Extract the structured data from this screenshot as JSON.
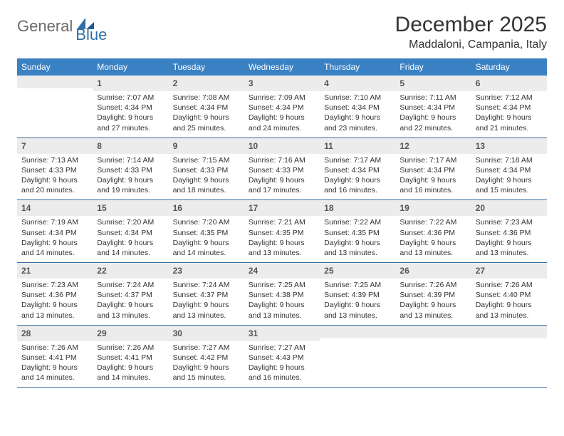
{
  "brand": {
    "general": "General",
    "blue": "Blue"
  },
  "title": "December 2025",
  "subtitle": "Maddaloni, Campania, Italy",
  "colors": {
    "header_bg": "#3a81c3",
    "header_text": "#ffffff",
    "daynum_bg": "#ececec",
    "week_border": "#3a6fa3",
    "body_text": "#333333",
    "logo_grey": "#6a6a6a",
    "logo_blue": "#2f6fa8"
  },
  "dow": [
    "Sunday",
    "Monday",
    "Tuesday",
    "Wednesday",
    "Thursday",
    "Friday",
    "Saturday"
  ],
  "weeks": [
    [
      null,
      {
        "n": "1",
        "sr": "Sunrise: 7:07 AM",
        "ss": "Sunset: 4:34 PM",
        "d1": "Daylight: 9 hours",
        "d2": "and 27 minutes."
      },
      {
        "n": "2",
        "sr": "Sunrise: 7:08 AM",
        "ss": "Sunset: 4:34 PM",
        "d1": "Daylight: 9 hours",
        "d2": "and 25 minutes."
      },
      {
        "n": "3",
        "sr": "Sunrise: 7:09 AM",
        "ss": "Sunset: 4:34 PM",
        "d1": "Daylight: 9 hours",
        "d2": "and 24 minutes."
      },
      {
        "n": "4",
        "sr": "Sunrise: 7:10 AM",
        "ss": "Sunset: 4:34 PM",
        "d1": "Daylight: 9 hours",
        "d2": "and 23 minutes."
      },
      {
        "n": "5",
        "sr": "Sunrise: 7:11 AM",
        "ss": "Sunset: 4:34 PM",
        "d1": "Daylight: 9 hours",
        "d2": "and 22 minutes."
      },
      {
        "n": "6",
        "sr": "Sunrise: 7:12 AM",
        "ss": "Sunset: 4:34 PM",
        "d1": "Daylight: 9 hours",
        "d2": "and 21 minutes."
      }
    ],
    [
      {
        "n": "7",
        "sr": "Sunrise: 7:13 AM",
        "ss": "Sunset: 4:33 PM",
        "d1": "Daylight: 9 hours",
        "d2": "and 20 minutes."
      },
      {
        "n": "8",
        "sr": "Sunrise: 7:14 AM",
        "ss": "Sunset: 4:33 PM",
        "d1": "Daylight: 9 hours",
        "d2": "and 19 minutes."
      },
      {
        "n": "9",
        "sr": "Sunrise: 7:15 AM",
        "ss": "Sunset: 4:33 PM",
        "d1": "Daylight: 9 hours",
        "d2": "and 18 minutes."
      },
      {
        "n": "10",
        "sr": "Sunrise: 7:16 AM",
        "ss": "Sunset: 4:33 PM",
        "d1": "Daylight: 9 hours",
        "d2": "and 17 minutes."
      },
      {
        "n": "11",
        "sr": "Sunrise: 7:17 AM",
        "ss": "Sunset: 4:34 PM",
        "d1": "Daylight: 9 hours",
        "d2": "and 16 minutes."
      },
      {
        "n": "12",
        "sr": "Sunrise: 7:17 AM",
        "ss": "Sunset: 4:34 PM",
        "d1": "Daylight: 9 hours",
        "d2": "and 16 minutes."
      },
      {
        "n": "13",
        "sr": "Sunrise: 7:18 AM",
        "ss": "Sunset: 4:34 PM",
        "d1": "Daylight: 9 hours",
        "d2": "and 15 minutes."
      }
    ],
    [
      {
        "n": "14",
        "sr": "Sunrise: 7:19 AM",
        "ss": "Sunset: 4:34 PM",
        "d1": "Daylight: 9 hours",
        "d2": "and 14 minutes."
      },
      {
        "n": "15",
        "sr": "Sunrise: 7:20 AM",
        "ss": "Sunset: 4:34 PM",
        "d1": "Daylight: 9 hours",
        "d2": "and 14 minutes."
      },
      {
        "n": "16",
        "sr": "Sunrise: 7:20 AM",
        "ss": "Sunset: 4:35 PM",
        "d1": "Daylight: 9 hours",
        "d2": "and 14 minutes."
      },
      {
        "n": "17",
        "sr": "Sunrise: 7:21 AM",
        "ss": "Sunset: 4:35 PM",
        "d1": "Daylight: 9 hours",
        "d2": "and 13 minutes."
      },
      {
        "n": "18",
        "sr": "Sunrise: 7:22 AM",
        "ss": "Sunset: 4:35 PM",
        "d1": "Daylight: 9 hours",
        "d2": "and 13 minutes."
      },
      {
        "n": "19",
        "sr": "Sunrise: 7:22 AM",
        "ss": "Sunset: 4:36 PM",
        "d1": "Daylight: 9 hours",
        "d2": "and 13 minutes."
      },
      {
        "n": "20",
        "sr": "Sunrise: 7:23 AM",
        "ss": "Sunset: 4:36 PM",
        "d1": "Daylight: 9 hours",
        "d2": "and 13 minutes."
      }
    ],
    [
      {
        "n": "21",
        "sr": "Sunrise: 7:23 AM",
        "ss": "Sunset: 4:36 PM",
        "d1": "Daylight: 9 hours",
        "d2": "and 13 minutes."
      },
      {
        "n": "22",
        "sr": "Sunrise: 7:24 AM",
        "ss": "Sunset: 4:37 PM",
        "d1": "Daylight: 9 hours",
        "d2": "and 13 minutes."
      },
      {
        "n": "23",
        "sr": "Sunrise: 7:24 AM",
        "ss": "Sunset: 4:37 PM",
        "d1": "Daylight: 9 hours",
        "d2": "and 13 minutes."
      },
      {
        "n": "24",
        "sr": "Sunrise: 7:25 AM",
        "ss": "Sunset: 4:38 PM",
        "d1": "Daylight: 9 hours",
        "d2": "and 13 minutes."
      },
      {
        "n": "25",
        "sr": "Sunrise: 7:25 AM",
        "ss": "Sunset: 4:39 PM",
        "d1": "Daylight: 9 hours",
        "d2": "and 13 minutes."
      },
      {
        "n": "26",
        "sr": "Sunrise: 7:26 AM",
        "ss": "Sunset: 4:39 PM",
        "d1": "Daylight: 9 hours",
        "d2": "and 13 minutes."
      },
      {
        "n": "27",
        "sr": "Sunrise: 7:26 AM",
        "ss": "Sunset: 4:40 PM",
        "d1": "Daylight: 9 hours",
        "d2": "and 13 minutes."
      }
    ],
    [
      {
        "n": "28",
        "sr": "Sunrise: 7:26 AM",
        "ss": "Sunset: 4:41 PM",
        "d1": "Daylight: 9 hours",
        "d2": "and 14 minutes."
      },
      {
        "n": "29",
        "sr": "Sunrise: 7:26 AM",
        "ss": "Sunset: 4:41 PM",
        "d1": "Daylight: 9 hours",
        "d2": "and 14 minutes."
      },
      {
        "n": "30",
        "sr": "Sunrise: 7:27 AM",
        "ss": "Sunset: 4:42 PM",
        "d1": "Daylight: 9 hours",
        "d2": "and 15 minutes."
      },
      {
        "n": "31",
        "sr": "Sunrise: 7:27 AM",
        "ss": "Sunset: 4:43 PM",
        "d1": "Daylight: 9 hours",
        "d2": "and 16 minutes."
      },
      null,
      null,
      null
    ]
  ]
}
